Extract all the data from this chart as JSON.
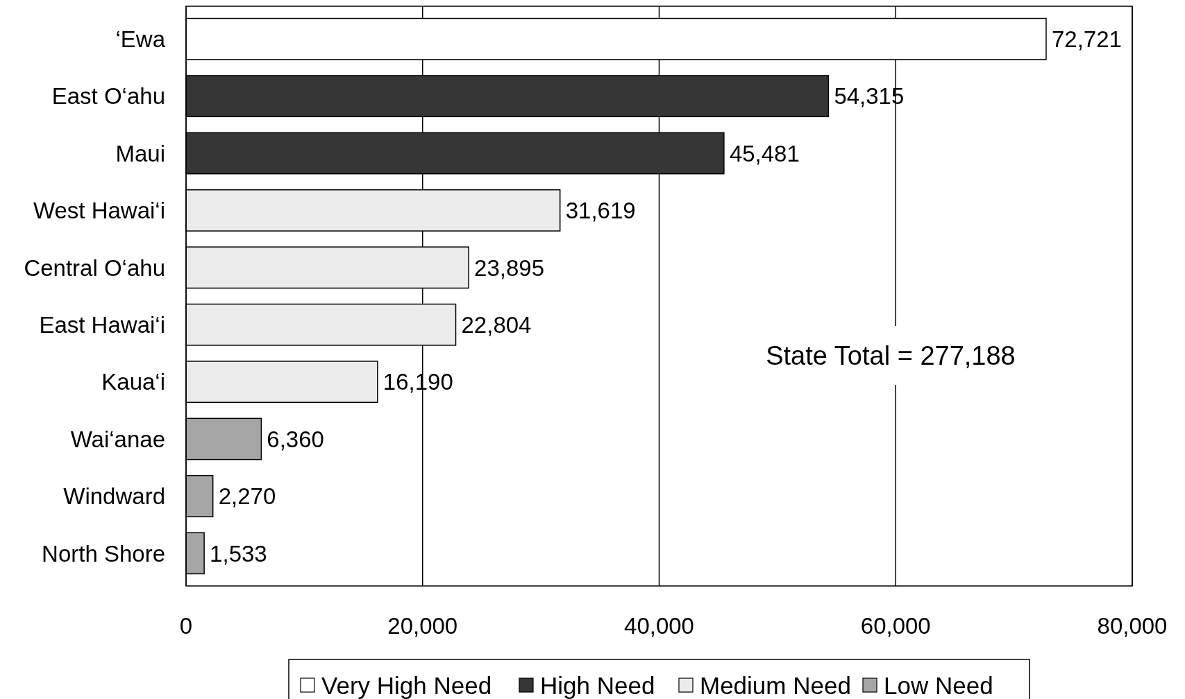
{
  "chart_data": {
    "type": "bar",
    "orientation": "horizontal",
    "categories": [
      "‘Ewa",
      "East O‘ahu",
      "Maui",
      "West Hawai‘i",
      "Central O‘ahu",
      "East Hawai‘i",
      "Kaua‘i",
      "Wai‘anae",
      "Windward",
      "North Shore"
    ],
    "series": [
      {
        "name": "Very High Need",
        "color": "#ffffff",
        "values": [
          72721,
          null,
          null,
          null,
          null,
          null,
          null,
          null,
          null,
          null
        ],
        "value_labels": [
          "72,721",
          null,
          null,
          null,
          null,
          null,
          null,
          null,
          null,
          null
        ]
      },
      {
        "name": "High Need",
        "color": "#363636",
        "values": [
          null,
          54315,
          45481,
          null,
          null,
          null,
          null,
          null,
          null,
          null
        ],
        "value_labels": [
          null,
          "54,315",
          "45,481",
          null,
          null,
          null,
          null,
          null,
          null,
          null
        ]
      },
      {
        "name": "Medium Need",
        "color": "#ebebeb",
        "values": [
          null,
          null,
          null,
          31619,
          23895,
          22804,
          16190,
          null,
          null,
          null
        ],
        "value_labels": [
          null,
          null,
          null,
          "31,619",
          "23,895",
          "22,804",
          "16,190",
          null,
          null,
          null
        ]
      },
      {
        "name": "Low Need",
        "color": "#a6a6a6",
        "values": [
          null,
          null,
          null,
          null,
          null,
          null,
          null,
          6360,
          2270,
          1533
        ],
        "value_labels": [
          null,
          null,
          null,
          null,
          null,
          null,
          null,
          "6,360",
          "2,270",
          "1,533"
        ]
      }
    ],
    "xlim": [
      0,
      80000
    ],
    "xticks": [
      {
        "value": 0,
        "label": "0"
      },
      {
        "value": 20000,
        "label": "20,000"
      },
      {
        "value": 40000,
        "label": "40,000"
      },
      {
        "value": 60000,
        "label": "60,000"
      },
      {
        "value": 80000,
        "label": "80,000"
      }
    ],
    "grid": "x",
    "legend": "bottom",
    "annotations": [
      "State Total = 277,188"
    ]
  }
}
